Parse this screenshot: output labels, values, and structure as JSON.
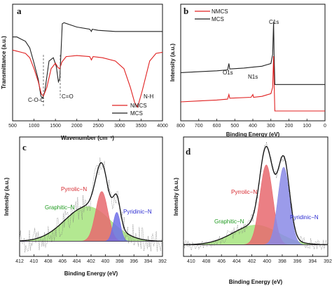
{
  "chart_data": [
    {
      "panel": "a",
      "type": "line",
      "xlabel": "Wavenumber (cm⁻¹)",
      "ylabel": "Transmittance (a.u.)",
      "xlim": [
        500,
        4000
      ],
      "xticks": [
        500,
        1000,
        1500,
        2000,
        2500,
        3000,
        3500,
        4000
      ],
      "legend": [
        "NMCS",
        "MCS"
      ],
      "legend_position": "bottom-right",
      "annotations": [
        "C-O-C",
        "C=O",
        "N-H"
      ],
      "colors": {
        "NMCS": "#e02020",
        "MCS": "#222222"
      },
      "series": [
        {
          "name": "MCS",
          "points": [
            [
              500,
              0.74
            ],
            [
              600,
              0.74
            ],
            [
              700,
              0.72
            ],
            [
              800,
              0.7
            ],
            [
              900,
              0.64
            ],
            [
              1000,
              0.5
            ],
            [
              1100,
              0.35
            ],
            [
              1160,
              0.2
            ],
            [
              1200,
              0.18
            ],
            [
              1250,
              0.24
            ],
            [
              1350,
              0.52
            ],
            [
              1450,
              0.55
            ],
            [
              1520,
              0.47
            ],
            [
              1570,
              0.33
            ],
            [
              1600,
              0.36
            ],
            [
              1630,
              0.6
            ],
            [
              1660,
              0.86
            ],
            [
              1700,
              0.87
            ],
            [
              2000,
              0.83
            ],
            [
              2300,
              0.81
            ],
            [
              2340,
              0.79
            ],
            [
              2360,
              0.81
            ],
            [
              2500,
              0.8
            ],
            [
              2900,
              0.79
            ],
            [
              3300,
              0.79
            ],
            [
              3600,
              0.79
            ],
            [
              4000,
              0.79
            ]
          ]
        },
        {
          "name": "NMCS",
          "points": [
            [
              500,
              0.62
            ],
            [
              600,
              0.61
            ],
            [
              700,
              0.6
            ],
            [
              800,
              0.59
            ],
            [
              900,
              0.55
            ],
            [
              1000,
              0.45
            ],
            [
              1100,
              0.33
            ],
            [
              1170,
              0.22
            ],
            [
              1220,
              0.2
            ],
            [
              1300,
              0.28
            ],
            [
              1400,
              0.45
            ],
            [
              1500,
              0.5
            ],
            [
              1560,
              0.46
            ],
            [
              1600,
              0.45
            ],
            [
              1650,
              0.51
            ],
            [
              1750,
              0.56
            ],
            [
              2000,
              0.57
            ],
            [
              2300,
              0.56
            ],
            [
              2340,
              0.53
            ],
            [
              2380,
              0.56
            ],
            [
              2600,
              0.55
            ],
            [
              2900,
              0.52
            ],
            [
              3100,
              0.45
            ],
            [
              3250,
              0.28
            ],
            [
              3350,
              0.14
            ],
            [
              3420,
              0.1
            ],
            [
              3520,
              0.24
            ],
            [
              3700,
              0.52
            ],
            [
              3850,
              0.59
            ],
            [
              4000,
              0.6
            ]
          ]
        }
      ]
    },
    {
      "panel": "b",
      "type": "line",
      "xlabel": "Binding Energy (eV)",
      "ylabel": "Intensity (a.u.)",
      "xlim": [
        800,
        0
      ],
      "xticks": [
        800,
        700,
        600,
        500,
        400,
        300,
        200,
        100,
        0
      ],
      "legend": [
        "NMCS",
        "MCS"
      ],
      "legend_position": "top-left",
      "annotations": [
        "O1s",
        "N1s",
        "C1s"
      ],
      "colors": {
        "NMCS": "#e02020",
        "MCS": "#222222"
      },
      "series": [
        {
          "name": "MCS",
          "points": [
            [
              800,
              0.42
            ],
            [
              700,
              0.43
            ],
            [
              600,
              0.44
            ],
            [
              540,
              0.45
            ],
            [
              533,
              0.52
            ],
            [
              528,
              0.46
            ],
            [
              450,
              0.47
            ],
            [
              400,
              0.48
            ],
            [
              350,
              0.49
            ],
            [
              300,
              0.52
            ],
            [
              290,
              0.62
            ],
            [
              285,
              0.98
            ],
            [
              282,
              0.6
            ],
            [
              278,
              0.29
            ],
            [
              270,
              0.29
            ],
            [
              200,
              0.29
            ],
            [
              100,
              0.29
            ],
            [
              0,
              0.29
            ]
          ]
        },
        {
          "name": "NMCS",
          "points": [
            [
              800,
              0.1
            ],
            [
              700,
              0.11
            ],
            [
              600,
              0.12
            ],
            [
              540,
              0.13
            ],
            [
              533,
              0.18
            ],
            [
              528,
              0.14
            ],
            [
              410,
              0.15
            ],
            [
              400,
              0.18
            ],
            [
              396,
              0.15
            ],
            [
              350,
              0.16
            ],
            [
              300,
              0.19
            ],
            [
              290,
              0.26
            ],
            [
              285,
              0.6
            ],
            [
              282,
              0.3
            ],
            [
              278,
              0.0
            ],
            [
              200,
              0.0
            ],
            [
              100,
              0.0
            ],
            [
              0,
              0.0
            ]
          ]
        }
      ]
    },
    {
      "panel": "c",
      "type": "area",
      "xlabel": "Binding Energy (eV)",
      "ylabel": "Intensity (a.u.)",
      "xlim": [
        412,
        392
      ],
      "xticks": [
        412,
        410,
        408,
        406,
        404,
        402,
        400,
        398,
        396,
        394,
        392
      ],
      "components": [
        {
          "name": "Pyrrolic−N",
          "center": 400.5,
          "height": 0.43,
          "fwhm": 2.0,
          "color": "#e8686e"
        },
        {
          "name": "Graphitic−N",
          "center": 402.5,
          "height": 0.3,
          "fwhm": 7.5,
          "color": "#a6e47e"
        },
        {
          "name": "Pyridinic−N",
          "center": 398.4,
          "height": 0.25,
          "fwhm": 1.2,
          "color": "#7070e8"
        }
      ]
    },
    {
      "panel": "d",
      "type": "area",
      "xlabel": "Binding Energy (eV)",
      "ylabel": "Intensity (a.u.)",
      "xlim": [
        411,
        392
      ],
      "xticks": [
        410,
        408,
        406,
        404,
        402,
        400,
        398,
        396,
        394,
        392
      ],
      "components": [
        {
          "name": "Pyrrolic−N",
          "center": 400.1,
          "height": 0.69,
          "fwhm": 2.0,
          "color": "#e8686e"
        },
        {
          "name": "Graphitic−N",
          "center": 401.5,
          "height": 0.17,
          "fwhm": 7.0,
          "color": "#a6e47e"
        },
        {
          "name": "Pyridinic−N",
          "center": 397.8,
          "height": 0.67,
          "fwhm": 1.8,
          "color": "#8a8ae6"
        }
      ]
    }
  ],
  "labels": {
    "a": {
      "panel": "a",
      "ylabel": "Transmittance (a.u.)",
      "xlabel": "Wavenumber (cm⁻¹)",
      "leg1": "NMCS",
      "leg2": "MCS",
      "ann1": "C-O-C",
      "ann2": "C=O",
      "ann3": "N-H"
    },
    "b": {
      "panel": "b",
      "ylabel": "Intensity (a.u.)",
      "xlabel": "Binding Energy (eV)",
      "leg1": "NMCS",
      "leg2": "MCS",
      "ann1": "O1s",
      "ann2": "N1s",
      "ann3": "C1s"
    },
    "c": {
      "panel": "c",
      "ylabel": "Intensity (a.u.)",
      "xlabel": "Binding Energy (eV)",
      "pk1": "Pyrrolic−N",
      "pk2": "Graphitic−N",
      "pk3": "Pyridinic−N"
    },
    "d": {
      "panel": "d",
      "ylabel": "Intensity (a.u.)",
      "xlabel": "Binding Energy (eV)",
      "pk1": "Pyrrolic−N",
      "pk2": "Graphitic−N",
      "pk3": "Pyridinic−N"
    }
  }
}
